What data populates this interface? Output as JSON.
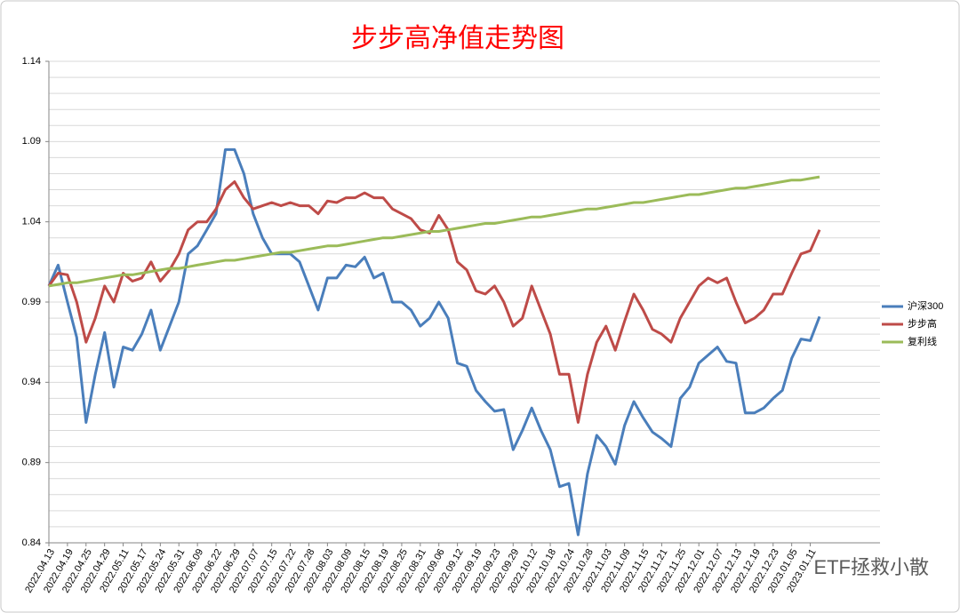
{
  "chart_data": {
    "type": "line",
    "title": "步步高净值走势图",
    "watermark": "ETF拯救小散",
    "categories": [
      "2022.04.13",
      null,
      "2022.04.19",
      null,
      "2022.04.25",
      null,
      "2022.04.29",
      null,
      "2022.05.11",
      null,
      "2022.05.17",
      null,
      "2022.05.24",
      null,
      "2022.05.31",
      null,
      "2022.06.09",
      null,
      "2022.06.22",
      null,
      "2022.06.29",
      null,
      "2022.07.07",
      null,
      "2022.07.15",
      null,
      "2022.07.22",
      null,
      "2022.07.28",
      null,
      "2022.08.03",
      null,
      "2022.08.09",
      null,
      "2022.08.15",
      null,
      "2022.08.19",
      null,
      "2022.08.25",
      null,
      "2022.08.31",
      null,
      "2022.09.06",
      null,
      "2022.09.12",
      null,
      "2022.09.19",
      null,
      "2022.09.23",
      null,
      "2022.09.29",
      null,
      "2022.10.12",
      null,
      "2022.10.18",
      null,
      "2022.10.24",
      null,
      "2022.10.28",
      null,
      "2022.11.03",
      null,
      "2022.11.09",
      null,
      "2022.11.15",
      null,
      "2022.11.21",
      null,
      "2022.11.25",
      null,
      "2022.12.01",
      null,
      "2022.12.07",
      null,
      "2022.12.13",
      null,
      "2022.12.19",
      null,
      "2022.12.23",
      null,
      "2023.01.05",
      null,
      "2023.01.11",
      null
    ],
    "series": [
      {
        "name": "沪深300",
        "color": "#4a7ebb",
        "values": [
          1.0,
          1.013,
          0.99,
          0.968,
          0.915,
          0.945,
          0.971,
          0.937,
          0.962,
          0.96,
          0.97,
          0.985,
          0.96,
          0.975,
          0.99,
          1.02,
          1.025,
          1.035,
          1.045,
          1.085,
          1.085,
          1.07,
          1.045,
          1.03,
          1.02,
          1.02,
          1.02,
          1.015,
          1.0,
          0.985,
          1.005,
          1.005,
          1.013,
          1.012,
          1.018,
          1.005,
          1.008,
          0.99,
          0.99,
          0.985,
          0.975,
          0.98,
          0.99,
          0.98,
          0.952,
          0.95,
          0.935,
          0.928,
          0.922,
          0.923,
          0.898,
          0.91,
          0.924,
          0.91,
          0.898,
          0.875,
          0.877,
          0.845,
          0.883,
          0.907,
          0.9,
          0.889,
          0.913,
          0.928,
          0.918,
          0.909,
          0.905,
          0.9,
          0.93,
          0.937,
          0.952,
          0.957,
          0.962,
          0.953,
          0.952,
          0.921,
          0.921,
          0.924,
          0.93,
          0.935,
          0.955,
          0.967,
          0.966,
          0.981
        ]
      },
      {
        "name": "步步高",
        "color": "#be4b48",
        "values": [
          1.0,
          1.008,
          1.007,
          0.99,
          0.965,
          0.98,
          1.0,
          0.99,
          1.008,
          1.003,
          1.005,
          1.015,
          1.003,
          1.01,
          1.02,
          1.035,
          1.04,
          1.04,
          1.048,
          1.06,
          1.065,
          1.055,
          1.048,
          1.05,
          1.052,
          1.05,
          1.052,
          1.05,
          1.05,
          1.045,
          1.053,
          1.052,
          1.055,
          1.055,
          1.058,
          1.055,
          1.055,
          1.048,
          1.045,
          1.042,
          1.035,
          1.033,
          1.044,
          1.035,
          1.015,
          1.01,
          0.997,
          0.995,
          1.0,
          0.99,
          0.975,
          0.98,
          1.0,
          0.985,
          0.97,
          0.945,
          0.945,
          0.915,
          0.945,
          0.965,
          0.975,
          0.96,
          0.978,
          0.995,
          0.985,
          0.973,
          0.97,
          0.965,
          0.98,
          0.99,
          1.0,
          1.005,
          1.002,
          1.005,
          0.99,
          0.977,
          0.98,
          0.985,
          0.995,
          0.995,
          1.008,
          1.02,
          1.022,
          1.035
        ]
      },
      {
        "name": "复利线",
        "color": "#9bbb59",
        "values": [
          1.0,
          1.001,
          1.002,
          1.002,
          1.003,
          1.004,
          1.005,
          1.006,
          1.007,
          1.007,
          1.008,
          1.009,
          1.01,
          1.011,
          1.011,
          1.012,
          1.013,
          1.014,
          1.015,
          1.016,
          1.016,
          1.017,
          1.018,
          1.019,
          1.02,
          1.021,
          1.021,
          1.022,
          1.023,
          1.024,
          1.025,
          1.025,
          1.026,
          1.027,
          1.028,
          1.029,
          1.03,
          1.03,
          1.031,
          1.032,
          1.033,
          1.034,
          1.034,
          1.035,
          1.036,
          1.037,
          1.038,
          1.039,
          1.039,
          1.04,
          1.041,
          1.042,
          1.043,
          1.043,
          1.044,
          1.045,
          1.046,
          1.047,
          1.048,
          1.048,
          1.049,
          1.05,
          1.051,
          1.052,
          1.052,
          1.053,
          1.054,
          1.055,
          1.056,
          1.057,
          1.057,
          1.058,
          1.059,
          1.06,
          1.061,
          1.061,
          1.062,
          1.063,
          1.064,
          1.065,
          1.066,
          1.066,
          1.067,
          1.068
        ]
      }
    ],
    "ylim": [
      0.84,
      1.14
    ],
    "yticks": [
      0.84,
      0.89,
      0.94,
      0.99,
      1.04,
      1.09,
      1.14
    ],
    "ygrid": [
      0.84,
      0.85,
      0.86,
      0.87,
      0.88,
      0.89,
      0.9,
      0.91,
      0.92,
      0.93,
      0.94,
      0.95,
      0.96,
      0.97,
      0.98,
      0.99,
      1.0,
      1.01,
      1.02,
      1.03,
      1.04,
      1.05,
      1.06,
      1.07,
      1.08,
      1.09,
      1.1,
      1.11,
      1.12,
      1.13,
      1.14
    ],
    "legend": "right"
  }
}
